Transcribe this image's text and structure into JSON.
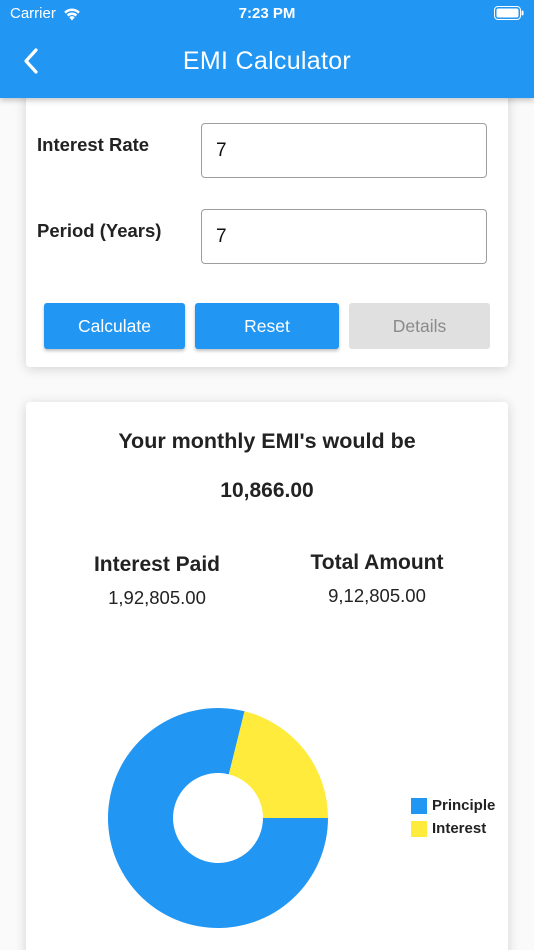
{
  "status_bar": {
    "carrier": "Carrier",
    "time": "7:23 PM"
  },
  "appbar": {
    "title": "EMI Calculator",
    "back_icon": "chevron-left-icon"
  },
  "form": {
    "interest_rate": {
      "label": "Interest Rate",
      "value": "7"
    },
    "period": {
      "label": "Period (Years)",
      "value": "7"
    },
    "buttons": {
      "calculate": "Calculate",
      "reset": "Reset",
      "details": "Details"
    }
  },
  "result": {
    "heading": "Your monthly EMI's would be",
    "emi": "10,866.00",
    "interest_paid": {
      "label": "Interest Paid",
      "value": "1,92,805.00"
    },
    "total_amount": {
      "label": "Total Amount",
      "value": "9,12,805.00"
    }
  },
  "colors": {
    "primary": "#2196f3",
    "interest": "#ffeb3b",
    "disabled": "#e0e0e0"
  },
  "chart_data": {
    "type": "pie",
    "categories": [
      "Principle",
      "Interest"
    ],
    "values": [
      720000,
      192805
    ],
    "colors": [
      "#2196f3",
      "#ffeb3b"
    ],
    "donut": true,
    "legend_position": "right"
  }
}
